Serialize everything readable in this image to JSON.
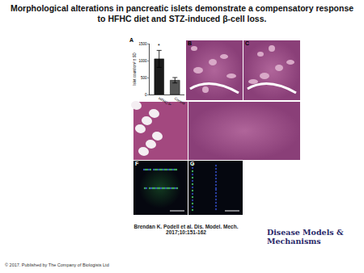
{
  "title": "Morphological alterations in pancreatic islets demonstrate a compensatory response to HFHC diet and STZ-induced β-cell loss.",
  "chart_data": {
    "type": "bar",
    "categories": [
      "HFHC-fed",
      "Control"
    ],
    "values": [
      1050,
      420
    ],
    "error": [
      250,
      80
    ],
    "colors": [
      "#1a1a1a",
      "#555555"
    ],
    "y_label": "Islet count/cm² ± SD",
    "ylim": [
      0,
      1500
    ],
    "yticks": [
      0,
      500,
      1000,
      1500
    ],
    "grid": false,
    "annotations": [
      {
        "category": "HFHC-fed",
        "text": "*"
      }
    ]
  },
  "panel_labels": [
    "A",
    "B",
    "C",
    "F",
    "G"
  ],
  "credit": "Brendan K. Podell et al. Dis. Model. Mech. 2017;10:151-162",
  "journal": "Disease Models & Mechanisms",
  "copyright": "© 2017. Published by The Company of Biologists Ltd"
}
